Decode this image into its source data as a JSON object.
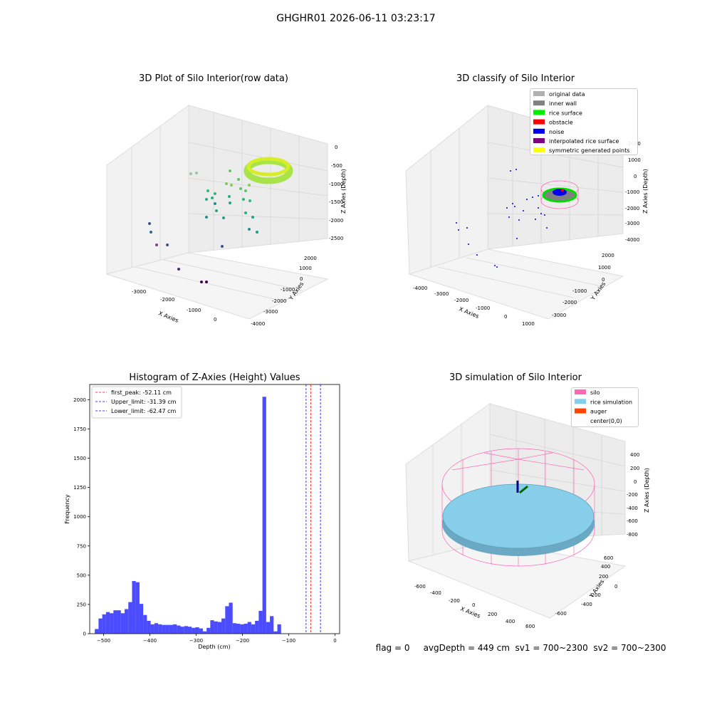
{
  "figure": {
    "suptitle": "GHGHR01 2026-06-11 03:23:17",
    "footer": {
      "flag": "flag = 0",
      "avg_depth": "avgDepth = 449 cm",
      "sv1": "sv1 = 700~2300",
      "sv2": "sv2 = 700~2300"
    }
  },
  "panels": {
    "raw3d": {
      "title": "3D Plot of Silo Interior(row data)",
      "xlabel": "X Axies",
      "ylabel": "Y Axies",
      "zlabel": "Z Axies (Depth)",
      "xticks": [
        "-3000",
        "-2000",
        "-1000",
        "0"
      ],
      "yticks": [
        "-4000",
        "-3000",
        "-2000",
        "-1000",
        "0",
        "1000",
        "2000"
      ],
      "zticks": [
        "0",
        "-500",
        "-1000",
        "-1500",
        "-2000",
        "-2500"
      ]
    },
    "classify3d": {
      "title": "3D classify of Silo Interior",
      "xlabel": "X Axies",
      "ylabel": "Y Axies",
      "zlabel": "Z Axies (Depth)",
      "xticks": [
        "-4000",
        "-3000",
        "-2000",
        "-1000",
        "0",
        "1000"
      ],
      "yticks": [
        "-3000",
        "-2000",
        "-1000",
        "0",
        "1000",
        "2000"
      ],
      "zticks": [
        "2000",
        "1000",
        "0",
        "-1000",
        "-2000",
        "-3000",
        "-4000"
      ],
      "legend": [
        {
          "label": "original data",
          "color": "#b0b0b0"
        },
        {
          "label": "inner wall",
          "color": "#808080"
        },
        {
          "label": "rice surface",
          "color": "#00ee00"
        },
        {
          "label": "obstacle",
          "color": "#ff0000"
        },
        {
          "label": "noise",
          "color": "#0000ee"
        },
        {
          "label": "interpolated rice surface",
          "color": "#800080"
        },
        {
          "label": "symmetric generated points",
          "color": "#ffff00"
        }
      ]
    },
    "sim3d": {
      "title": "3D simulation of Silo Interior",
      "xlabel": "X Axies",
      "ylabel": "Y Axies",
      "zlabel": "Z Axies (Depth)",
      "xticks": [
        "-600",
        "-400",
        "-200",
        "0",
        "200",
        "400",
        "600"
      ],
      "yticks": [
        "-600",
        "-400",
        "-200",
        "0",
        "200",
        "400",
        "600"
      ],
      "zticks": [
        "400",
        "200",
        "0",
        "-200",
        "-400",
        "-600",
        "-800"
      ],
      "legend": [
        {
          "label": "silo",
          "color": "#ff69b4"
        },
        {
          "label": "rice simulation",
          "color": "#87ceeb"
        },
        {
          "label": "auger",
          "color": "#ff4500"
        },
        {
          "label": "center(0,0)",
          "color": ""
        }
      ]
    }
  },
  "chart_data": {
    "type": "bar",
    "title": "Histogram of Z-Axies (Height) Values",
    "xlabel": "Depth (cm)",
    "ylabel": "Frequency",
    "xlim": [
      -530,
      10
    ],
    "ylim": [
      0,
      2130
    ],
    "xticks": [
      -500,
      -400,
      -300,
      -200,
      -100,
      0
    ],
    "yticks": [
      0,
      250,
      500,
      750,
      1000,
      1250,
      1500,
      1750,
      2000
    ],
    "bin_start": -519,
    "bin_width": 8.05,
    "values": [
      40,
      130,
      165,
      185,
      175,
      200,
      200,
      175,
      210,
      270,
      450,
      440,
      255,
      160,
      110,
      80,
      90,
      80,
      75,
      75,
      75,
      80,
      70,
      60,
      65,
      60,
      50,
      55,
      45,
      20,
      50,
      115,
      105,
      100,
      130,
      235,
      265,
      90,
      85,
      80,
      85,
      100,
      80,
      110,
      195,
      2025,
      100,
      150,
      20,
      80
    ],
    "color": "#0000ff",
    "alpha": 0.7,
    "lines": [
      {
        "label": "first_peak: -52.11 cm",
        "x": -52.11,
        "color": "#ff0000"
      },
      {
        "label": "Upper_limit: -31.39 cm",
        "x": -31.39,
        "color": "#0000ff"
      },
      {
        "label": "Lower_limit: -62.47 cm",
        "x": -62.47,
        "color": "#0000ff"
      }
    ]
  }
}
